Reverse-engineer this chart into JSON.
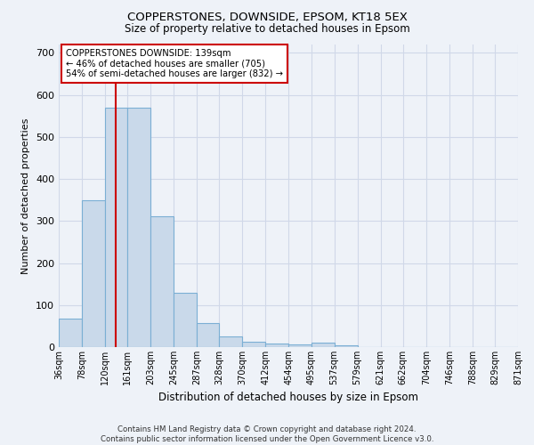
{
  "title": "COPPERSTONES, DOWNSIDE, EPSOM, KT18 5EX",
  "subtitle": "Size of property relative to detached houses in Epsom",
  "xlabel": "Distribution of detached houses by size in Epsom",
  "ylabel": "Number of detached properties",
  "footer_line1": "Contains HM Land Registry data © Crown copyright and database right 2024.",
  "footer_line2": "Contains public sector information licensed under the Open Government Licence v3.0.",
  "bin_labels": [
    "36sqm",
    "78sqm",
    "120sqm",
    "161sqm",
    "203sqm",
    "245sqm",
    "287sqm",
    "328sqm",
    "370sqm",
    "412sqm",
    "454sqm",
    "495sqm",
    "537sqm",
    "579sqm",
    "621sqm",
    "662sqm",
    "704sqm",
    "746sqm",
    "788sqm",
    "829sqm",
    "871sqm"
  ],
  "bar_values": [
    68,
    350,
    570,
    570,
    312,
    130,
    57,
    25,
    13,
    8,
    6,
    10,
    5,
    0,
    0,
    0,
    0,
    0,
    0,
    0
  ],
  "bin_edges": [
    36,
    78,
    120,
    161,
    203,
    245,
    287,
    328,
    370,
    412,
    454,
    495,
    537,
    579,
    621,
    662,
    704,
    746,
    788,
    829,
    871
  ],
  "bar_color": "#c9d9ea",
  "bar_edge_color": "#7bafd4",
  "property_size": 139,
  "property_line_color": "#cc0000",
  "annotation_text_line1": "COPPERSTONES DOWNSIDE: 139sqm",
  "annotation_text_line2": "← 46% of detached houses are smaller (705)",
  "annotation_text_line3": "54% of semi-detached houses are larger (832) →",
  "annotation_box_color": "#ffffff",
  "annotation_box_edge_color": "#cc0000",
  "ylim": [
    0,
    720
  ],
  "xlim": [
    36,
    871
  ],
  "yticks": [
    0,
    100,
    200,
    300,
    400,
    500,
    600,
    700
  ],
  "grid_color": "#d0d8e8",
  "background_color": "#eef2f8",
  "plot_bg_color": "#eef2f8"
}
